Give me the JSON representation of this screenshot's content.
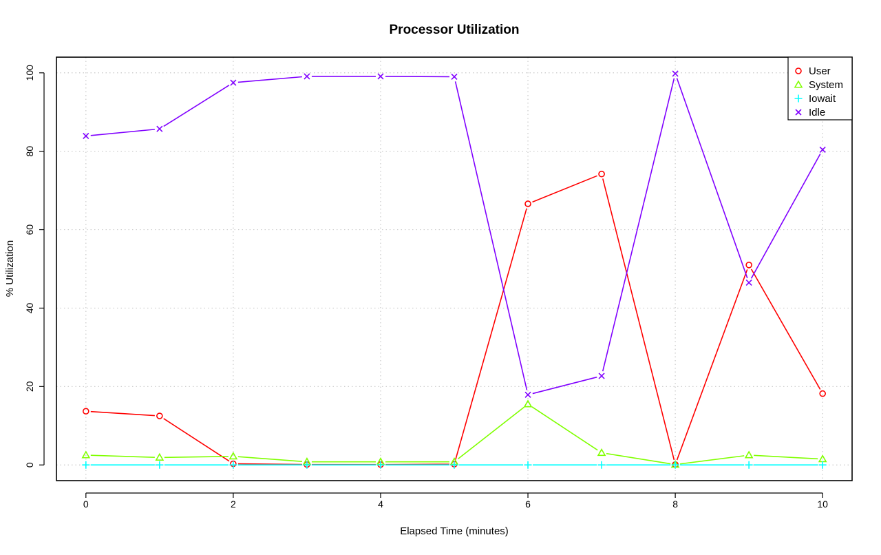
{
  "chart_data": {
    "type": "line",
    "title": "Processor Utilization",
    "xlabel": "Elapsed Time (minutes)",
    "ylabel": "% Utilization",
    "x": [
      0,
      1,
      2,
      3,
      4,
      5,
      6,
      7,
      8,
      9,
      10
    ],
    "xlim": [
      -0.4,
      10.4
    ],
    "ylim": [
      -4,
      104
    ],
    "x_ticks": [
      0,
      2,
      4,
      6,
      8,
      10
    ],
    "y_ticks": [
      0,
      20,
      40,
      60,
      80,
      100
    ],
    "grid": true,
    "legend_position": "top-right",
    "series": [
      {
        "name": "User",
        "color": "#ff0000",
        "marker": "circle",
        "values": [
          13.7,
          12.5,
          0.3,
          0.1,
          0.1,
          0.2,
          66.6,
          74.2,
          0.1,
          51.0,
          18.2
        ]
      },
      {
        "name": "System",
        "color": "#80ff00",
        "marker": "triangle",
        "values": [
          2.5,
          1.9,
          2.2,
          0.8,
          0.8,
          0.8,
          15.5,
          3.1,
          0.1,
          2.5,
          1.5
        ]
      },
      {
        "name": "Iowait",
        "color": "#00ffff",
        "marker": "plus",
        "values": [
          0,
          0,
          0,
          0,
          0,
          0,
          0,
          0,
          0,
          0,
          0
        ]
      },
      {
        "name": "Idle",
        "color": "#8000ff",
        "marker": "cross",
        "values": [
          83.9,
          85.7,
          97.5,
          99.1,
          99.1,
          99.0,
          17.9,
          22.7,
          99.8,
          46.5,
          80.4
        ]
      }
    ]
  }
}
